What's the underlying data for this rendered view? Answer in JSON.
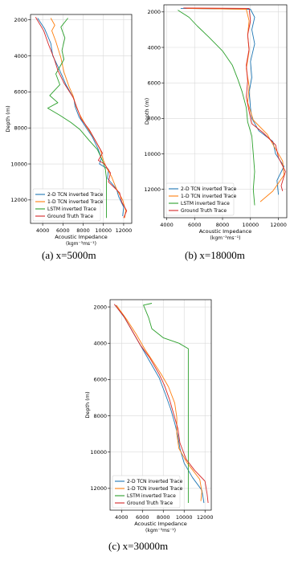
{
  "colors": {
    "tcn2d": "#1f77b4",
    "tcn1d": "#ff7f0e",
    "lstm": "#2ca02c",
    "truth": "#d62728"
  },
  "chart_data": [
    {
      "type": "line",
      "caption": "(a)  x=5000m",
      "ylabel": "Depth (m)",
      "xlabel": "Acoustic Impedance",
      "xlabel_units": "(kgm⁻³ms⁻¹)",
      "xlim": [
        2800,
        12800
      ],
      "ylim": [
        13300,
        1700
      ],
      "xticks": [
        4000,
        6000,
        8000,
        10000,
        12000
      ],
      "yticks": [
        2000,
        4000,
        6000,
        8000,
        10000,
        12000
      ],
      "grid": true,
      "legend": "bottom-left",
      "series": [
        {
          "name": "2-D TCN inverted Trace",
          "color_key": "tcn2d",
          "points": [
            [
              3500,
              1900
            ],
            [
              4200,
              2500
            ],
            [
              4800,
              3300
            ],
            [
              5000,
              4000
            ],
            [
              5600,
              4700
            ],
            [
              6300,
              5600
            ],
            [
              7100,
              6400
            ],
            [
              7200,
              6800
            ],
            [
              7600,
              7400
            ],
            [
              8200,
              7900
            ],
            [
              8900,
              8500
            ],
            [
              9500,
              9200
            ],
            [
              9800,
              9700
            ],
            [
              9600,
              10000
            ],
            [
              10500,
              10300
            ],
            [
              10400,
              10800
            ],
            [
              11300,
              11400
            ],
            [
              11500,
              11800
            ],
            [
              12000,
              12400
            ],
            [
              11900,
              12900
            ]
          ]
        },
        {
          "name": "1-D TCN inverted Trace",
          "color_key": "tcn1d",
          "points": [
            [
              4800,
              1900
            ],
            [
              5200,
              2300
            ],
            [
              4900,
              2600
            ],
            [
              5300,
              3200
            ],
            [
              5800,
              4100
            ],
            [
              6100,
              4900
            ],
            [
              6600,
              5700
            ],
            [
              7000,
              6200
            ],
            [
              7300,
              6800
            ],
            [
              7700,
              7300
            ],
            [
              8300,
              7900
            ],
            [
              9000,
              8500
            ],
            [
              9700,
              9200
            ],
            [
              10000,
              9800
            ],
            [
              10300,
              10200
            ],
            [
              10800,
              10700
            ],
            [
              11300,
              11400
            ],
            [
              11900,
              12000
            ],
            [
              12200,
              12600
            ],
            [
              12100,
              13000
            ]
          ]
        },
        {
          "name": "LSTM inverted Trace",
          "color_key": "lstm",
          "points": [
            [
              6500,
              1900
            ],
            [
              5800,
              2400
            ],
            [
              6200,
              3000
            ],
            [
              5900,
              3700
            ],
            [
              6100,
              4200
            ],
            [
              5300,
              5000
            ],
            [
              5700,
              5600
            ],
            [
              4700,
              6200
            ],
            [
              5500,
              6600
            ],
            [
              4500,
              6900
            ],
            [
              5700,
              7300
            ],
            [
              6800,
              7700
            ],
            [
              7700,
              8100
            ],
            [
              8600,
              8700
            ],
            [
              9400,
              9200
            ],
            [
              9900,
              9800
            ],
            [
              10200,
              10300
            ],
            [
              10300,
              10800
            ],
            [
              10300,
              11300
            ],
            [
              10300,
              11900
            ],
            [
              10300,
              12500
            ],
            [
              10300,
              13000
            ]
          ]
        },
        {
          "name": "Ground Truth Trace",
          "color_key": "truth",
          "points": [
            [
              3300,
              1850
            ],
            [
              4100,
              2600
            ],
            [
              4600,
              3400
            ],
            [
              5100,
              4100
            ],
            [
              5500,
              4800
            ],
            [
              6100,
              5500
            ],
            [
              7000,
              6300
            ],
            [
              7400,
              6900
            ],
            [
              7800,
              7500
            ],
            [
              8600,
              8100
            ],
            [
              9300,
              8800
            ],
            [
              9900,
              9400
            ],
            [
              9500,
              9800
            ],
            [
              10100,
              10000
            ],
            [
              10700,
              10500
            ],
            [
              10500,
              11000
            ],
            [
              11600,
              11600
            ],
            [
              11800,
              12100
            ],
            [
              12300,
              12600
            ],
            [
              12000,
              13000
            ]
          ]
        }
      ]
    },
    {
      "type": "line",
      "caption": "(b)  x=18000m",
      "ylabel": "Depth (m)",
      "xlabel": "Acoustic Impedance",
      "xlabel_units": "(kgm⁻³ms⁻¹)",
      "xlim": [
        3800,
        12600
      ],
      "ylim": [
        13600,
        1600
      ],
      "xticks": [
        4000,
        6000,
        8000,
        10000,
        12000
      ],
      "yticks": [
        2000,
        4000,
        6000,
        8000,
        10000,
        12000
      ],
      "grid": true,
      "legend": "bottom-left",
      "series": [
        {
          "name": "2-D TCN inverted Trace",
          "color_key": "tcn2d",
          "points": [
            [
              5000,
              1800
            ],
            [
              10000,
              1850
            ],
            [
              10300,
              2300
            ],
            [
              10100,
              3000
            ],
            [
              10300,
              3800
            ],
            [
              10000,
              4800
            ],
            [
              10100,
              5700
            ],
            [
              9900,
              6500
            ],
            [
              10000,
              7400
            ],
            [
              10100,
              8000
            ],
            [
              10600,
              8700
            ],
            [
              11600,
              9300
            ],
            [
              11800,
              10000
            ],
            [
              12400,
              10700
            ],
            [
              11900,
              11500
            ],
            [
              12000,
              12300
            ]
          ]
        },
        {
          "name": "1-D TCN inverted Trace",
          "color_key": "tcn1d",
          "points": [
            [
              5400,
              1800
            ],
            [
              9700,
              1850
            ],
            [
              9900,
              2500
            ],
            [
              9800,
              3300
            ],
            [
              9900,
              4200
            ],
            [
              9700,
              5200
            ],
            [
              9900,
              6200
            ],
            [
              9800,
              7100
            ],
            [
              10200,
              8100
            ],
            [
              11200,
              8900
            ],
            [
              11700,
              9600
            ],
            [
              12300,
              10400
            ],
            [
              12400,
              11200
            ],
            [
              11600,
              12100
            ],
            [
              10700,
              12700
            ]
          ]
        },
        {
          "name": "LSTM inverted Trace",
          "color_key": "lstm",
          "points": [
            [
              4800,
              1900
            ],
            [
              5600,
              2300
            ],
            [
              6200,
              2800
            ],
            [
              7000,
              3400
            ],
            [
              8000,
              4200
            ],
            [
              8700,
              5000
            ],
            [
              9100,
              5800
            ],
            [
              9400,
              6500
            ],
            [
              9700,
              7400
            ],
            [
              9800,
              8200
            ],
            [
              10100,
              9000
            ],
            [
              10200,
              10000
            ],
            [
              10300,
              11000
            ],
            [
              10200,
              12000
            ],
            [
              10300,
              12900
            ]
          ]
        },
        {
          "name": "Ground Truth Trace",
          "color_key": "truth",
          "points": [
            [
              5200,
              1780
            ],
            [
              9900,
              1800
            ],
            [
              10000,
              2500
            ],
            [
              9800,
              3300
            ],
            [
              9900,
              4100
            ],
            [
              9700,
              5000
            ],
            [
              9800,
              5900
            ],
            [
              9700,
              6800
            ],
            [
              9900,
              7600
            ],
            [
              10100,
              8300
            ],
            [
              10900,
              8800
            ],
            [
              11800,
              9500
            ],
            [
              12000,
              10200
            ],
            [
              12500,
              11000
            ],
            [
              12200,
              11800
            ],
            [
              12300,
              12100
            ]
          ]
        }
      ]
    },
    {
      "type": "line",
      "caption": "(c)  x=30000m",
      "ylabel": "Depth (m)",
      "xlabel": "Acoustic Impedance",
      "xlabel_units": "(kgm⁻³ms⁻¹)",
      "xlim": [
        2900,
        12600
      ],
      "ylim": [
        13200,
        1600
      ],
      "xticks": [
        4000,
        6000,
        8000,
        10000,
        12000
      ],
      "yticks": [
        2000,
        4000,
        6000,
        8000,
        10000,
        12000
      ],
      "grid": true,
      "legend": "bottom-left",
      "series": [
        {
          "name": "2-D TCN inverted Trace",
          "color_key": "tcn2d",
          "points": [
            [
              3400,
              1900
            ],
            [
              4300,
              2600
            ],
            [
              5100,
              3400
            ],
            [
              6000,
              4300
            ],
            [
              6800,
              5100
            ],
            [
              7600,
              5900
            ],
            [
              8200,
              6800
            ],
            [
              8700,
              7600
            ],
            [
              9100,
              8400
            ],
            [
              9400,
              9100
            ],
            [
              9600,
              9800
            ],
            [
              10000,
              10600
            ],
            [
              10800,
              11400
            ],
            [
              11700,
              12100
            ],
            [
              11900,
              12800
            ]
          ]
        },
        {
          "name": "1-D TCN inverted Trace",
          "color_key": "tcn1d",
          "points": [
            [
              3500,
              1900
            ],
            [
              4500,
              2700
            ],
            [
              5400,
              3500
            ],
            [
              6200,
              4300
            ],
            [
              7000,
              5000
            ],
            [
              7800,
              5700
            ],
            [
              8500,
              6400
            ],
            [
              9100,
              7300
            ],
            [
              9300,
              8100
            ],
            [
              9300,
              9000
            ],
            [
              9500,
              9800
            ],
            [
              10300,
              10600
            ],
            [
              11500,
              11500
            ],
            [
              11700,
              12200
            ],
            [
              11600,
              12700
            ]
          ]
        },
        {
          "name": "LSTM inverted Trace",
          "color_key": "lstm",
          "points": [
            [
              6900,
              1800
            ],
            [
              6100,
              1900
            ],
            [
              6600,
              2600
            ],
            [
              6900,
              3200
            ],
            [
              8000,
              3700
            ],
            [
              9500,
              4000
            ],
            [
              10400,
              4300
            ],
            [
              10400,
              5000
            ],
            [
              10400,
              6000
            ],
            [
              10400,
              7000
            ],
            [
              10400,
              8000
            ],
            [
              10400,
              9000
            ],
            [
              10400,
              10000
            ],
            [
              10400,
              11000
            ],
            [
              10400,
              12000
            ],
            [
              10400,
              12800
            ]
          ]
        },
        {
          "name": "Ground Truth Trace",
          "color_key": "truth",
          "points": [
            [
              3300,
              1850
            ],
            [
              4200,
              2500
            ],
            [
              5000,
              3300
            ],
            [
              5800,
              4100
            ],
            [
              6700,
              4800
            ],
            [
              7600,
              5700
            ],
            [
              8100,
              6300
            ],
            [
              8600,
              7100
            ],
            [
              9000,
              7900
            ],
            [
              9400,
              8700
            ],
            [
              9600,
              9500
            ],
            [
              10200,
              10400
            ],
            [
              11000,
              11000
            ],
            [
              12000,
              11600
            ],
            [
              12200,
              12300
            ],
            [
              12300,
              12800
            ]
          ]
        }
      ]
    }
  ]
}
